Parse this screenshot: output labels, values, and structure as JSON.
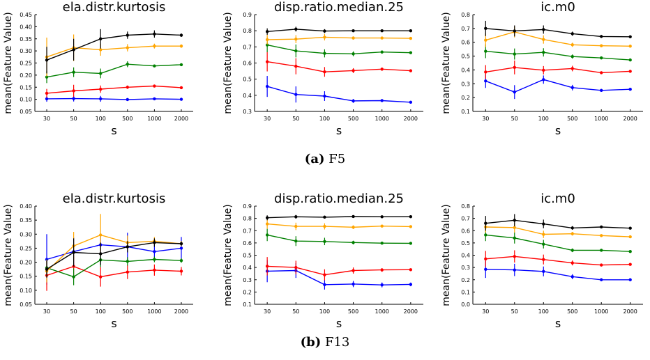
{
  "captions": [
    {
      "label": "(a)",
      "text": "F5"
    },
    {
      "label": "(b)",
      "text": "F13"
    }
  ],
  "series_colors": [
    "#0000ff",
    "#ff0000",
    "#008000",
    "#ffa500",
    "#000000"
  ],
  "chart_data": [
    {
      "type": "line",
      "title": "ela.distr.kurtosis",
      "xlabel": "s",
      "ylabel": "mean(Feature Value)",
      "x": [
        "30",
        "50",
        "100",
        "500",
        "1000",
        "2000"
      ],
      "ylim": [
        0.05,
        0.45
      ],
      "yticks": [
        "0.05",
        "0.10",
        "0.15",
        "0.20",
        "0.25",
        "0.30",
        "0.35",
        "0.40",
        "0.45"
      ],
      "series": [
        {
          "values": [
            0.102,
            0.103,
            0.102,
            0.099,
            0.102,
            0.1
          ],
          "errors": [
            0.012,
            0.012,
            0.012,
            0.006,
            0.005,
            0.004
          ]
        },
        {
          "values": [
            0.125,
            0.135,
            0.142,
            0.15,
            0.155,
            0.148
          ],
          "errors": [
            0.018,
            0.025,
            0.015,
            0.007,
            0.006,
            0.004
          ]
        },
        {
          "values": [
            0.192,
            0.212,
            0.207,
            0.245,
            0.238,
            0.243
          ],
          "errors": [
            0.025,
            0.02,
            0.02,
            0.012,
            0.005,
            0.004
          ]
        },
        {
          "values": [
            0.275,
            0.313,
            0.305,
            0.313,
            0.32,
            0.32
          ],
          "errors": [
            0.08,
            0.055,
            0.025,
            0.015,
            0.01,
            0.007
          ]
        },
        {
          "values": [
            0.262,
            0.305,
            0.35,
            0.365,
            0.37,
            0.365
          ],
          "errors": [
            0.055,
            0.045,
            0.04,
            0.015,
            0.015,
            0.007
          ]
        }
      ]
    },
    {
      "type": "line",
      "title": "disp.ratio.median.25",
      "xlabel": "s",
      "ylabel": "mean(Feature Value)",
      "x": [
        "30",
        "50",
        "100",
        "500",
        "1000",
        "2000"
      ],
      "ylim": [
        0.3,
        0.9
      ],
      "yticks": [
        "0.3",
        "0.4",
        "0.5",
        "0.6",
        "0.7",
        "0.8",
        "0.9"
      ],
      "series": [
        {
          "values": [
            0.455,
            0.405,
            0.395,
            0.365,
            0.367,
            0.357
          ],
          "errors": [
            0.065,
            0.05,
            0.03,
            0.012,
            0.008,
            0.005
          ]
        },
        {
          "values": [
            0.608,
            0.58,
            0.545,
            0.553,
            0.562,
            0.552
          ],
          "errors": [
            0.06,
            0.05,
            0.03,
            0.015,
            0.01,
            0.006
          ]
        },
        {
          "values": [
            0.712,
            0.675,
            0.66,
            0.657,
            0.668,
            0.664
          ],
          "errors": [
            0.045,
            0.04,
            0.025,
            0.015,
            0.01,
            0.006
          ]
        },
        {
          "values": [
            0.745,
            0.748,
            0.76,
            0.755,
            0.755,
            0.753
          ],
          "errors": [
            0.03,
            0.025,
            0.02,
            0.01,
            0.008,
            0.005
          ]
        },
        {
          "values": [
            0.795,
            0.81,
            0.798,
            0.8,
            0.8,
            0.8
          ],
          "errors": [
            0.02,
            0.015,
            0.012,
            0.008,
            0.006,
            0.004
          ]
        }
      ]
    },
    {
      "type": "line",
      "title": "ic.m0",
      "xlabel": "s",
      "ylabel": "mean(Feature Value)",
      "x": [
        "30",
        "50",
        "100",
        "500",
        "1000",
        "2000"
      ],
      "ylim": [
        0.1,
        0.8
      ],
      "yticks": [
        "0.1",
        "0.2",
        "0.3",
        "0.4",
        "0.5",
        "0.6",
        "0.7",
        "0.8"
      ],
      "series": [
        {
          "values": [
            0.32,
            0.24,
            0.33,
            0.272,
            0.252,
            0.26
          ],
          "errors": [
            0.05,
            0.05,
            0.03,
            0.02,
            0.01,
            0.006
          ]
        },
        {
          "values": [
            0.385,
            0.418,
            0.398,
            0.41,
            0.38,
            0.39
          ],
          "errors": [
            0.05,
            0.05,
            0.03,
            0.02,
            0.01,
            0.006
          ]
        },
        {
          "values": [
            0.535,
            0.515,
            0.527,
            0.497,
            0.487,
            0.472
          ],
          "errors": [
            0.05,
            0.04,
            0.03,
            0.015,
            0.01,
            0.006
          ]
        },
        {
          "values": [
            0.615,
            0.675,
            0.62,
            0.582,
            0.575,
            0.572
          ],
          "errors": [
            0.05,
            0.04,
            0.03,
            0.015,
            0.01,
            0.006
          ]
        },
        {
          "values": [
            0.7,
            0.682,
            0.692,
            0.662,
            0.642,
            0.64
          ],
          "errors": [
            0.055,
            0.04,
            0.03,
            0.015,
            0.01,
            0.006
          ]
        }
      ]
    },
    {
      "type": "line",
      "title": "ela.distr.kurtosis",
      "xlabel": "s",
      "ylabel": "mean(Feature Value)",
      "x": [
        "30",
        "50",
        "100",
        "500",
        "1000",
        "2000"
      ],
      "ylim": [
        0.05,
        0.4
      ],
      "yticks": [
        "0.05",
        "0.10",
        "0.15",
        "0.20",
        "0.25",
        "0.30",
        "0.35",
        "0.40"
      ],
      "series": [
        {
          "values": [
            0.21,
            0.238,
            0.262,
            0.255,
            0.238,
            0.25
          ],
          "errors": [
            0.09,
            0.05,
            0.04,
            0.05,
            0.025,
            0.04
          ]
        },
        {
          "values": [
            0.153,
            0.185,
            0.148,
            0.165,
            0.172,
            0.168
          ],
          "errors": [
            0.055,
            0.04,
            0.035,
            0.025,
            0.02,
            0.015
          ]
        },
        {
          "values": [
            0.18,
            0.148,
            0.208,
            0.203,
            0.21,
            0.206
          ],
          "errors": [
            0.03,
            0.03,
            0.025,
            0.015,
            0.01,
            0.008
          ]
        },
        {
          "values": [
            0.168,
            0.258,
            0.297,
            0.27,
            0.275,
            0.266
          ],
          "errors": [
            0.04,
            0.05,
            0.075,
            0.025,
            0.015,
            0.01
          ]
        },
        {
          "values": [
            0.175,
            0.235,
            0.23,
            0.255,
            0.27,
            0.266
          ],
          "errors": [
            0.03,
            0.05,
            0.04,
            0.02,
            0.015,
            0.008
          ]
        }
      ]
    },
    {
      "type": "line",
      "title": "disp.ratio.median.25",
      "xlabel": "s",
      "ylabel": "mean(Feature Value)",
      "x": [
        "30",
        "50",
        "100",
        "500",
        "1000",
        "2000"
      ],
      "ylim": [
        0.1,
        0.9
      ],
      "yticks": [
        "0.1",
        "0.2",
        "0.3",
        "0.4",
        "0.5",
        "0.6",
        "0.7",
        "0.8",
        "0.9"
      ],
      "series": [
        {
          "values": [
            0.37,
            0.375,
            0.26,
            0.265,
            0.258,
            0.262
          ],
          "errors": [
            0.09,
            0.06,
            0.04,
            0.025,
            0.02,
            0.015
          ]
        },
        {
          "values": [
            0.41,
            0.4,
            0.34,
            0.375,
            0.38,
            0.382
          ],
          "errors": [
            0.075,
            0.055,
            0.045,
            0.025,
            0.015,
            0.01
          ]
        },
        {
          "values": [
            0.665,
            0.615,
            0.612,
            0.603,
            0.598,
            0.597
          ],
          "errors": [
            0.05,
            0.04,
            0.03,
            0.015,
            0.01,
            0.006
          ]
        },
        {
          "values": [
            0.755,
            0.735,
            0.735,
            0.728,
            0.737,
            0.733
          ],
          "errors": [
            0.04,
            0.03,
            0.025,
            0.015,
            0.01,
            0.006
          ]
        },
        {
          "values": [
            0.805,
            0.813,
            0.81,
            0.815,
            0.813,
            0.814
          ],
          "errors": [
            0.02,
            0.015,
            0.012,
            0.008,
            0.006,
            0.004
          ]
        }
      ]
    },
    {
      "type": "line",
      "title": "ic.m0",
      "xlabel": "s",
      "ylabel": "mean(Feature Value)",
      "x": [
        "30",
        "50",
        "100",
        "500",
        "1000",
        "2000"
      ],
      "ylim": [
        0.0,
        0.8
      ],
      "yticks": [
        "0.0",
        "0.1",
        "0.2",
        "0.3",
        "0.4",
        "0.5",
        "0.6",
        "0.7",
        "0.8"
      ],
      "series": [
        {
          "values": [
            0.285,
            0.28,
            0.268,
            0.225,
            0.2,
            0.2
          ],
          "errors": [
            0.07,
            0.05,
            0.04,
            0.02,
            0.01,
            0.006
          ]
        },
        {
          "values": [
            0.37,
            0.39,
            0.365,
            0.337,
            0.32,
            0.325
          ],
          "errors": [
            0.065,
            0.05,
            0.04,
            0.02,
            0.012,
            0.008
          ]
        },
        {
          "values": [
            0.565,
            0.54,
            0.49,
            0.44,
            0.44,
            0.43
          ],
          "errors": [
            0.05,
            0.045,
            0.035,
            0.015,
            0.01,
            0.006
          ]
        },
        {
          "values": [
            0.63,
            0.625,
            0.57,
            0.575,
            0.56,
            0.55
          ],
          "errors": [
            0.045,
            0.04,
            0.03,
            0.015,
            0.01,
            0.006
          ]
        },
        {
          "values": [
            0.66,
            0.685,
            0.655,
            0.622,
            0.63,
            0.62
          ],
          "errors": [
            0.06,
            0.05,
            0.035,
            0.015,
            0.01,
            0.006
          ]
        }
      ]
    }
  ]
}
